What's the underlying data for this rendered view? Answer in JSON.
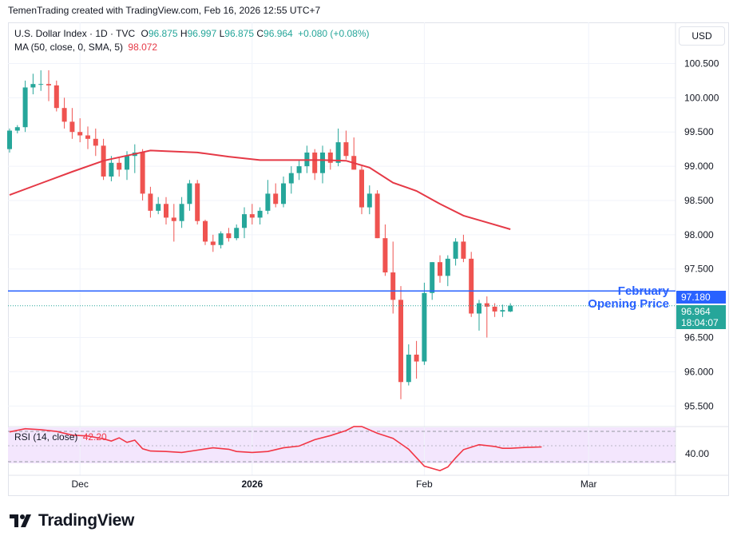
{
  "header": {
    "attribution": "TemenTrading created with TradingView.com, Feb 16, 2026 12:55 UTC+7"
  },
  "legend": {
    "symbol": "U.S. Dollar Index · 1D · TVC",
    "o_label": "O",
    "o_value": "96.875",
    "h_label": "H",
    "h_value": "96.997",
    "l_label": "L",
    "l_value": "96.875",
    "c_label": "C",
    "c_value": "96.964",
    "change": "+0.080 (+0.08%)",
    "ma_label": "MA (50, close, 0, SMA, 5)",
    "ma_value": "98.072",
    "rsi_label": "RSI (14, close)",
    "rsi_value": "42.20"
  },
  "currency_button": "USD",
  "annotation": {
    "line1": "February",
    "line2": "Opening Price"
  },
  "price_tags": {
    "opening_price": "97.180",
    "last_price": "96.964",
    "countdown": "18:04:07"
  },
  "brand": {
    "name": "TradingView"
  },
  "colors": {
    "up": "#26a69a",
    "down": "#ef5350",
    "ma": "#e53946",
    "rsi": "#f23645",
    "level": "#2962ff",
    "rsi_band": "#7e57c2"
  },
  "chart_data": {
    "type": "candlestick",
    "title": "U.S. Dollar Index · 1D · TVC",
    "ylim": [
      95.2,
      101.1
    ],
    "y_ticks": [
      "100.500",
      "100.000",
      "99.500",
      "99.000",
      "98.500",
      "98.000",
      "97.500",
      "96.500",
      "96.000",
      "95.500"
    ],
    "x_ticks": [
      {
        "label": "Dec",
        "index": 9
      },
      {
        "label": "2026",
        "index": 31
      },
      {
        "label": "Feb",
        "index": 53
      },
      {
        "label": "Mar",
        "index": 74
      }
    ],
    "candles": [
      [
        99.25,
        99.55,
        99.2,
        99.52
      ],
      [
        99.52,
        99.6,
        99.48,
        99.57
      ],
      [
        99.57,
        100.25,
        99.5,
        100.15
      ],
      [
        100.15,
        100.35,
        100.05,
        100.2
      ],
      [
        100.2,
        100.4,
        100.1,
        100.2
      ],
      [
        100.2,
        100.4,
        99.95,
        100.18
      ],
      [
        100.18,
        100.25,
        99.8,
        99.85
      ],
      [
        99.85,
        100.0,
        99.55,
        99.65
      ],
      [
        99.65,
        99.85,
        99.4,
        99.5
      ],
      [
        99.5,
        99.7,
        99.35,
        99.45
      ],
      [
        99.45,
        99.58,
        99.25,
        99.4
      ],
      [
        99.4,
        99.55,
        99.15,
        99.3
      ],
      [
        99.3,
        99.4,
        98.8,
        98.85
      ],
      [
        98.85,
        99.15,
        98.78,
        99.05
      ],
      [
        99.05,
        99.12,
        98.85,
        98.95
      ],
      [
        98.95,
        99.22,
        98.8,
        99.15
      ],
      [
        99.15,
        99.32,
        98.9,
        99.2
      ],
      [
        99.2,
        99.25,
        98.5,
        98.6
      ],
      [
        98.6,
        98.7,
        98.25,
        98.35
      ],
      [
        98.35,
        98.55,
        98.3,
        98.45
      ],
      [
        98.45,
        98.55,
        98.15,
        98.25
      ],
      [
        98.25,
        98.45,
        97.9,
        98.2
      ],
      [
        98.2,
        98.55,
        98.1,
        98.45
      ],
      [
        98.45,
        98.8,
        98.35,
        98.75
      ],
      [
        98.75,
        98.8,
        98.15,
        98.2
      ],
      [
        98.2,
        98.22,
        97.85,
        97.9
      ],
      [
        97.9,
        98.0,
        97.75,
        97.85
      ],
      [
        97.85,
        98.05,
        97.8,
        98.02
      ],
      [
        98.02,
        98.1,
        97.9,
        97.95
      ],
      [
        97.95,
        98.15,
        97.92,
        98.1
      ],
      [
        98.1,
        98.4,
        97.95,
        98.3
      ],
      [
        98.3,
        98.45,
        98.15,
        98.25
      ],
      [
        98.25,
        98.4,
        98.15,
        98.35
      ],
      [
        98.35,
        98.8,
        98.3,
        98.6
      ],
      [
        98.6,
        98.75,
        98.4,
        98.45
      ],
      [
        98.45,
        98.85,
        98.4,
        98.75
      ],
      [
        98.75,
        99.0,
        98.6,
        98.9
      ],
      [
        98.9,
        99.1,
        98.8,
        99.0
      ],
      [
        99.0,
        99.3,
        98.9,
        99.2
      ],
      [
        99.2,
        99.25,
        98.8,
        98.9
      ],
      [
        98.9,
        99.3,
        98.75,
        99.2
      ],
      [
        99.2,
        99.25,
        98.95,
        99.05
      ],
      [
        99.05,
        99.55,
        99.0,
        99.35
      ],
      [
        99.35,
        99.52,
        99.1,
        99.15
      ],
      [
        99.15,
        99.42,
        98.95,
        98.95
      ],
      [
        98.95,
        99.0,
        98.3,
        98.4
      ],
      [
        98.4,
        98.72,
        98.3,
        98.6
      ],
      [
        98.6,
        98.65,
        97.95,
        97.95
      ],
      [
        97.95,
        98.15,
        97.4,
        97.45
      ],
      [
        97.45,
        97.9,
        96.85,
        97.05
      ],
      [
        97.05,
        97.25,
        95.6,
        95.85
      ],
      [
        95.85,
        96.4,
        95.8,
        96.25
      ],
      [
        96.25,
        96.45,
        95.9,
        96.15
      ],
      [
        96.15,
        97.3,
        96.1,
        97.15
      ],
      [
        97.15,
        97.6,
        97.05,
        97.6
      ],
      [
        97.6,
        97.7,
        97.3,
        97.4
      ],
      [
        97.4,
        97.7,
        97.25,
        97.65
      ],
      [
        97.65,
        97.95,
        97.55,
        97.9
      ],
      [
        97.9,
        98.0,
        97.6,
        97.65
      ],
      [
        97.65,
        97.75,
        96.8,
        96.85
      ],
      [
        96.85,
        97.05,
        96.6,
        97.0
      ],
      [
        97.0,
        97.1,
        96.5,
        96.95
      ],
      [
        96.95,
        97.0,
        96.8,
        96.88
      ],
      [
        96.88,
        96.98,
        96.8,
        96.9
      ],
      [
        96.88,
        97.0,
        96.87,
        96.964
      ]
    ],
    "ma_series": [
      [
        0,
        98.58
      ],
      [
        4,
        98.75
      ],
      [
        8,
        98.92
      ],
      [
        12,
        99.08
      ],
      [
        16,
        99.18
      ],
      [
        18,
        99.23
      ],
      [
        20,
        99.22
      ],
      [
        24,
        99.2
      ],
      [
        28,
        99.14
      ],
      [
        32,
        99.09
      ],
      [
        36,
        99.09
      ],
      [
        40,
        99.09
      ],
      [
        43,
        99.08
      ],
      [
        46,
        98.98
      ],
      [
        49,
        98.76
      ],
      [
        52,
        98.64
      ],
      [
        55,
        98.45
      ],
      [
        58,
        98.28
      ],
      [
        61,
        98.18
      ],
      [
        64,
        98.08
      ]
    ],
    "opening_level": 97.18,
    "last_price": 96.964,
    "rsi_series": [
      [
        0,
        45.5
      ],
      [
        2,
        46.2
      ],
      [
        4,
        46.0
      ],
      [
        6,
        45.6
      ],
      [
        8,
        44.8
      ],
      [
        10,
        44.6
      ],
      [
        12,
        44.0
      ],
      [
        13,
        43.5
      ],
      [
        14,
        44.2
      ],
      [
        15,
        43.2
      ],
      [
        16,
        43.7
      ],
      [
        17,
        41.8
      ],
      [
        18,
        41.3
      ],
      [
        20,
        41.2
      ],
      [
        22,
        41.0
      ],
      [
        24,
        41.5
      ],
      [
        26,
        42.0
      ],
      [
        28,
        41.7
      ],
      [
        29,
        41.2
      ],
      [
        31,
        41.0
      ],
      [
        33,
        41.2
      ],
      [
        35,
        42.0
      ],
      [
        37,
        42.4
      ],
      [
        39,
        43.8
      ],
      [
        41,
        44.7
      ],
      [
        43,
        45.8
      ],
      [
        44,
        46.7
      ],
      [
        45,
        46.7
      ],
      [
        47,
        45.2
      ],
      [
        49,
        44.1
      ],
      [
        51,
        41.7
      ],
      [
        53,
        38.0
      ],
      [
        55,
        37.0
      ],
      [
        56,
        37.8
      ],
      [
        57,
        39.8
      ],
      [
        58,
        41.6
      ],
      [
        60,
        42.7
      ],
      [
        62,
        42.3
      ],
      [
        63,
        41.9
      ],
      [
        64,
        41.9
      ],
      [
        66,
        42.1
      ],
      [
        68,
        42.2
      ]
    ],
    "rsi_range": [
      36.5,
      46.5
    ],
    "rsi_bands": [
      30,
      70
    ],
    "rsi_tick": "40.00"
  }
}
